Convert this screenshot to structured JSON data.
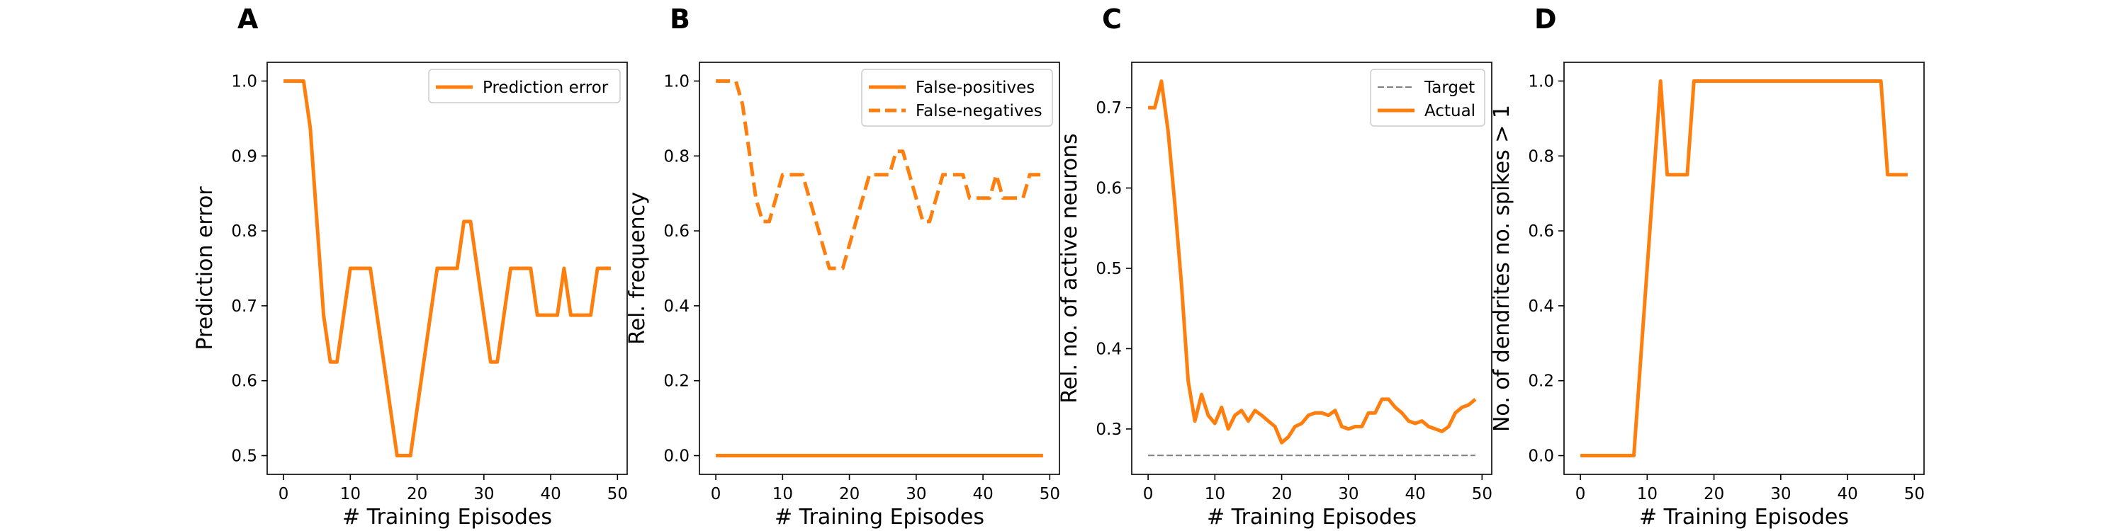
{
  "figure": {
    "description_colors": {
      "orange": "#ff7f0e",
      "target_gray": "#808080"
    }
  },
  "chart_data": [
    {
      "type": "line",
      "panel_label": "A",
      "xlabel": "# Training Episodes",
      "ylabel": "Prediction error",
      "xlim": [
        -2.45,
        51.45
      ],
      "ylim": [
        0.475,
        1.025
      ],
      "xticks": [
        0,
        10,
        20,
        30,
        40,
        50
      ],
      "xtick_labels": [
        "0",
        "10",
        "20",
        "30",
        "40",
        "50"
      ],
      "yticks": [
        0.5,
        0.6,
        0.7,
        0.8,
        0.9,
        1.0
      ],
      "ytick_labels": [
        "0.5",
        "0.6",
        "0.7",
        "0.8",
        "0.9",
        "1.0"
      ],
      "grid": false,
      "legend": "top-right",
      "series": [
        {
          "name": "Prediction error",
          "color": "#ff7f0e",
          "dash": "solid",
          "x": [
            0,
            1,
            2,
            3,
            4,
            5,
            6,
            7,
            8,
            9,
            10,
            11,
            12,
            13,
            14,
            15,
            16,
            17,
            18,
            19,
            20,
            21,
            22,
            23,
            24,
            25,
            26,
            27,
            28,
            29,
            30,
            31,
            32,
            33,
            34,
            35,
            36,
            37,
            38,
            39,
            40,
            41,
            42,
            43,
            44,
            45,
            46,
            47,
            48,
            49
          ],
          "y": [
            1.0,
            1.0,
            1.0,
            1.0,
            0.9375,
            0.8125,
            0.6875,
            0.625,
            0.625,
            0.6875,
            0.75,
            0.75,
            0.75,
            0.75,
            0.6875,
            0.625,
            0.5625,
            0.5,
            0.5,
            0.5,
            0.5625,
            0.625,
            0.6875,
            0.75,
            0.75,
            0.75,
            0.75,
            0.8125,
            0.8125,
            0.75,
            0.6875,
            0.625,
            0.625,
            0.6875,
            0.75,
            0.75,
            0.75,
            0.75,
            0.6875,
            0.6875,
            0.6875,
            0.6875,
            0.75,
            0.6875,
            0.6875,
            0.6875,
            0.6875,
            0.75,
            0.75,
            0.75
          ]
        }
      ]
    },
    {
      "type": "line",
      "panel_label": "B",
      "xlabel": "# Training Episodes",
      "ylabel": "Rel. frequency",
      "xlim": [
        -2.45,
        51.45
      ],
      "ylim": [
        -0.05,
        1.05
      ],
      "xticks": [
        0,
        10,
        20,
        30,
        40,
        50
      ],
      "xtick_labels": [
        "0",
        "10",
        "20",
        "30",
        "40",
        "50"
      ],
      "yticks": [
        0.0,
        0.2,
        0.4,
        0.6,
        0.8,
        1.0
      ],
      "ytick_labels": [
        "0.0",
        "0.2",
        "0.4",
        "0.6",
        "0.8",
        "1.0"
      ],
      "grid": false,
      "legend": "top-right",
      "series": [
        {
          "name": "False-positives",
          "color": "#ff7f0e",
          "dash": "solid",
          "x": [
            0,
            1,
            2,
            3,
            4,
            5,
            6,
            7,
            8,
            9,
            10,
            11,
            12,
            13,
            14,
            15,
            16,
            17,
            18,
            19,
            20,
            21,
            22,
            23,
            24,
            25,
            26,
            27,
            28,
            29,
            30,
            31,
            32,
            33,
            34,
            35,
            36,
            37,
            38,
            39,
            40,
            41,
            42,
            43,
            44,
            45,
            46,
            47,
            48,
            49
          ],
          "y": [
            0,
            0,
            0,
            0,
            0,
            0,
            0,
            0,
            0,
            0,
            0,
            0,
            0,
            0,
            0,
            0,
            0,
            0,
            0,
            0,
            0,
            0,
            0,
            0,
            0,
            0,
            0,
            0,
            0,
            0,
            0,
            0,
            0,
            0,
            0,
            0,
            0,
            0,
            0,
            0,
            0,
            0,
            0,
            0,
            0,
            0,
            0,
            0,
            0,
            0
          ]
        },
        {
          "name": "False-negatives",
          "color": "#ff7f0e",
          "dash": "dashed",
          "x": [
            0,
            1,
            2,
            3,
            4,
            5,
            6,
            7,
            8,
            9,
            10,
            11,
            12,
            13,
            14,
            15,
            16,
            17,
            18,
            19,
            20,
            21,
            22,
            23,
            24,
            25,
            26,
            27,
            28,
            29,
            30,
            31,
            32,
            33,
            34,
            35,
            36,
            37,
            38,
            39,
            40,
            41,
            42,
            43,
            44,
            45,
            46,
            47,
            48,
            49
          ],
          "y": [
            1.0,
            1.0,
            1.0,
            1.0,
            0.9375,
            0.8125,
            0.6875,
            0.625,
            0.625,
            0.6875,
            0.75,
            0.75,
            0.75,
            0.75,
            0.6875,
            0.625,
            0.5625,
            0.5,
            0.5,
            0.5,
            0.5625,
            0.625,
            0.6875,
            0.75,
            0.75,
            0.75,
            0.75,
            0.8125,
            0.8125,
            0.75,
            0.6875,
            0.625,
            0.625,
            0.6875,
            0.75,
            0.75,
            0.75,
            0.75,
            0.6875,
            0.6875,
            0.6875,
            0.6875,
            0.75,
            0.6875,
            0.6875,
            0.6875,
            0.6875,
            0.75,
            0.75,
            0.75
          ]
        }
      ]
    },
    {
      "type": "line",
      "panel_label": "C",
      "xlabel": "# Training Episodes",
      "ylabel": "Rel. no. of active neurons",
      "xlim": [
        -2.45,
        51.45
      ],
      "ylim": [
        0.2435,
        0.7565
      ],
      "xticks": [
        0,
        10,
        20,
        30,
        40,
        50
      ],
      "xtick_labels": [
        "0",
        "10",
        "20",
        "30",
        "40",
        "50"
      ],
      "yticks": [
        0.3,
        0.4,
        0.5,
        0.6,
        0.7
      ],
      "ytick_labels": [
        "0.3",
        "0.4",
        "0.5",
        "0.6",
        "0.7"
      ],
      "grid": false,
      "legend": "top-right",
      "series": [
        {
          "name": "Target",
          "color": "#808080",
          "dash": "dashed",
          "x": [
            0,
            49
          ],
          "y": [
            0.267,
            0.267
          ]
        },
        {
          "name": "Actual",
          "color": "#ff7f0e",
          "dash": "solid",
          "x": [
            0,
            1,
            2,
            3,
            4,
            5,
            6,
            7,
            8,
            9,
            10,
            11,
            12,
            13,
            14,
            15,
            16,
            17,
            18,
            19,
            20,
            21,
            22,
            23,
            24,
            25,
            26,
            27,
            28,
            29,
            30,
            31,
            32,
            33,
            34,
            35,
            36,
            37,
            38,
            39,
            40,
            41,
            42,
            43,
            44,
            45,
            46,
            47,
            48,
            49
          ],
          "y": [
            0.7,
            0.7,
            0.733,
            0.67,
            0.58,
            0.48,
            0.36,
            0.31,
            0.343,
            0.317,
            0.307,
            0.327,
            0.3,
            0.317,
            0.323,
            0.31,
            0.323,
            0.317,
            0.31,
            0.303,
            0.283,
            0.29,
            0.303,
            0.307,
            0.317,
            0.32,
            0.32,
            0.317,
            0.323,
            0.303,
            0.3,
            0.303,
            0.303,
            0.32,
            0.32,
            0.337,
            0.337,
            0.327,
            0.32,
            0.31,
            0.307,
            0.31,
            0.303,
            0.3,
            0.297,
            0.303,
            0.32,
            0.327,
            0.33,
            0.337
          ]
        }
      ]
    },
    {
      "type": "line",
      "panel_label": "D",
      "xlabel": "# Training Episodes",
      "ylabel": "No. of dendrites no. spikes > 1",
      "xlim": [
        -2.45,
        51.45
      ],
      "ylim": [
        -0.05,
        1.05
      ],
      "xticks": [
        0,
        10,
        20,
        30,
        40,
        50
      ],
      "xtick_labels": [
        "0",
        "10",
        "20",
        "30",
        "40",
        "50"
      ],
      "yticks": [
        0.0,
        0.2,
        0.4,
        0.6,
        0.8,
        1.0
      ],
      "ytick_labels": [
        "0.0",
        "0.2",
        "0.4",
        "0.6",
        "0.8",
        "1.0"
      ],
      "grid": false,
      "legend": "none",
      "series": [
        {
          "color": "#ff7f0e",
          "dash": "solid",
          "x": [
            0,
            1,
            2,
            3,
            4,
            5,
            6,
            7,
            8,
            9,
            10,
            11,
            12,
            13,
            14,
            15,
            16,
            17,
            18,
            19,
            20,
            21,
            22,
            23,
            24,
            25,
            26,
            27,
            28,
            29,
            30,
            31,
            32,
            33,
            34,
            35,
            36,
            37,
            38,
            39,
            40,
            41,
            42,
            43,
            44,
            45,
            46,
            47,
            48,
            49
          ],
          "y": [
            0,
            0,
            0,
            0,
            0,
            0,
            0,
            0,
            0,
            0.25,
            0.5,
            0.75,
            1.0,
            0.75,
            0.75,
            0.75,
            0.75,
            1.0,
            1.0,
            1.0,
            1.0,
            1.0,
            1.0,
            1.0,
            1.0,
            1.0,
            1.0,
            1.0,
            1.0,
            1.0,
            1.0,
            1.0,
            1.0,
            1.0,
            1.0,
            1.0,
            1.0,
            1.0,
            1.0,
            1.0,
            1.0,
            1.0,
            1.0,
            1.0,
            1.0,
            1.0,
            0.75,
            0.75,
            0.75,
            0.75
          ]
        }
      ]
    }
  ]
}
